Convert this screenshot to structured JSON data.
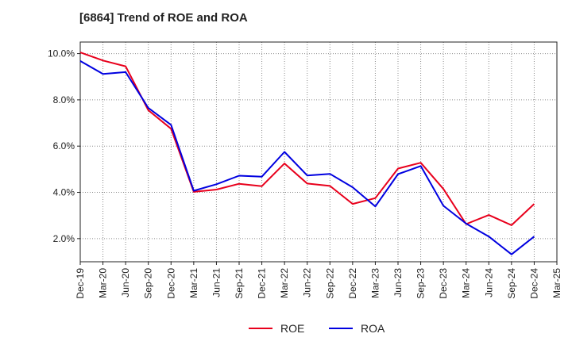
{
  "chart_data": {
    "type": "line",
    "title": "[6864]  Trend of ROE and ROA",
    "xlabel": "",
    "ylabel": "",
    "categories": [
      "Dec-19",
      "Mar-20",
      "Jun-20",
      "Sep-20",
      "Dec-20",
      "Mar-21",
      "Jun-21",
      "Sep-21",
      "Dec-21",
      "Mar-22",
      "Jun-22",
      "Sep-22",
      "Dec-22",
      "Mar-23",
      "Jun-23",
      "Sep-23",
      "Dec-23",
      "Mar-24",
      "Jun-24",
      "Sep-24",
      "Dec-24",
      "Mar-25"
    ],
    "y_ticks": [
      "2.0%",
      "4.0%",
      "6.0%",
      "8.0%",
      "10.0%"
    ],
    "ylim": [
      1.0,
      10.5
    ],
    "grid": true,
    "legend_position": "bottom-center",
    "series": [
      {
        "name": "ROE",
        "color": "#e8001c",
        "values": [
          10.05,
          9.7,
          9.45,
          7.55,
          6.75,
          4.02,
          4.12,
          4.37,
          4.27,
          5.25,
          4.38,
          4.28,
          3.5,
          3.75,
          5.03,
          5.28,
          4.15,
          2.63,
          3.02,
          2.58,
          3.5,
          null
        ]
      },
      {
        "name": "ROA",
        "color": "#0000e0",
        "values": [
          9.68,
          9.12,
          9.2,
          7.65,
          6.92,
          4.07,
          4.35,
          4.72,
          4.68,
          5.75,
          4.73,
          4.8,
          4.22,
          3.39,
          4.79,
          5.14,
          3.42,
          2.65,
          2.09,
          1.32,
          2.09,
          null
        ]
      }
    ]
  }
}
